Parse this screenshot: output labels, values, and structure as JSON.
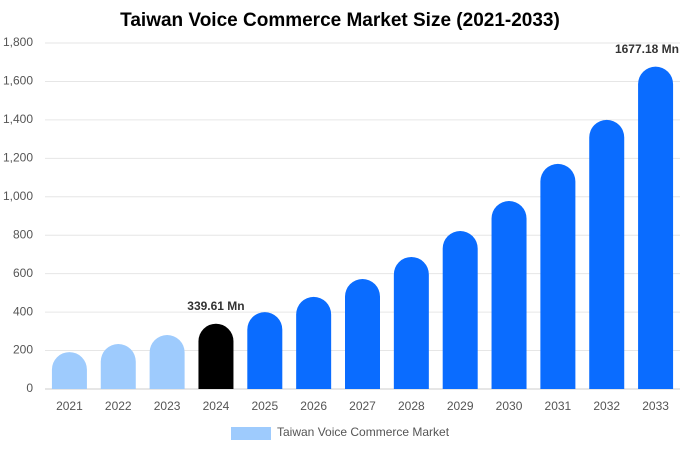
{
  "chart_data": {
    "type": "bar",
    "title": "Taiwan Voice Commerce Market Size (2021-2033)",
    "categories": [
      "2021",
      "2022",
      "2023",
      "2024",
      "2025",
      "2026",
      "2027",
      "2028",
      "2029",
      "2030",
      "2031",
      "2032",
      "2033"
    ],
    "series": [
      {
        "name": "Taiwan Voice Commerce Market",
        "color": "#9ecbfd",
        "values": [
          192,
          234,
          281,
          339.61,
          400,
          479,
          572,
          687,
          822,
          978,
          1171,
          1400,
          1677.18
        ],
        "value_labels": [
          null,
          null,
          null,
          "339.61 Mn",
          null,
          null,
          null,
          null,
          null,
          null,
          null,
          null,
          "1677.18 Mn"
        ],
        "colors": [
          "#9ecbfd",
          "#9ecbfd",
          "#9ecbfd",
          "#000000",
          "#0a6cff",
          "#0a6cff",
          "#0a6cff",
          "#0a6cff",
          "#0a6cff",
          "#0a6cff",
          "#0a6cff",
          "#0a6cff",
          "#0a6cff"
        ]
      }
    ],
    "ylim": [
      0,
      1800
    ],
    "yticks": [
      0,
      200,
      400,
      600,
      800,
      {
        "value": 1000,
        "label": "1,000"
      },
      {
        "value": 1200,
        "label": "1,200"
      },
      {
        "value": 1400,
        "label": "1,400"
      },
      {
        "value": 1600,
        "label": "1,600"
      },
      {
        "value": 1800,
        "label": "1,800"
      }
    ],
    "grid": true,
    "legend": "bottom"
  }
}
